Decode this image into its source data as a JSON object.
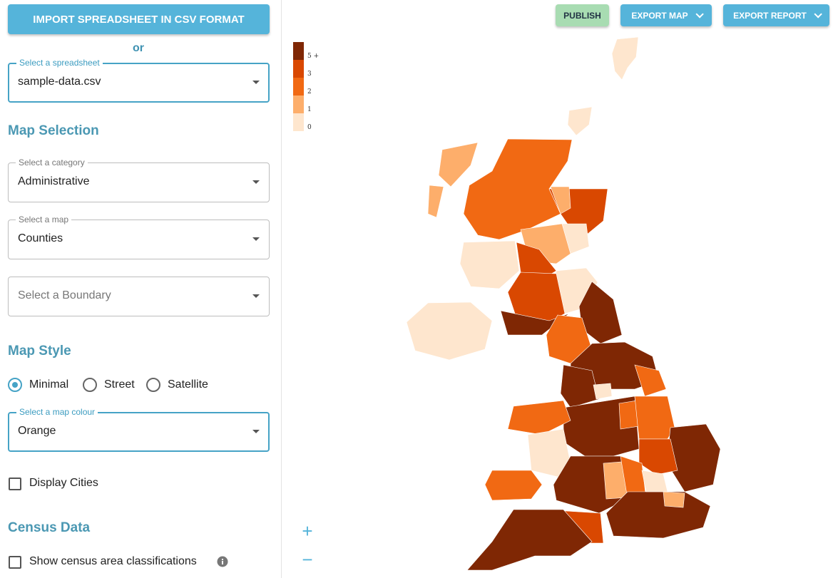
{
  "buttons": {
    "import": "IMPORT SPREADSHEET IN CSV FORMAT",
    "or": "or",
    "publish": "PUBLISH",
    "export_map": "EXPORT MAP",
    "export_report": "EXPORT REPORT"
  },
  "spreadsheet": {
    "label": "Select a spreadsheet",
    "value": "sample-data.csv"
  },
  "map_selection": {
    "heading": "Map Selection",
    "category": {
      "label": "Select a category",
      "value": "Administrative"
    },
    "map": {
      "label": "Select a map",
      "value": "Counties"
    },
    "boundary": {
      "placeholder": "Select a Boundary"
    }
  },
  "map_style": {
    "heading": "Map Style",
    "options": [
      "Minimal",
      "Street",
      "Satellite"
    ],
    "selected": "Minimal",
    "colour": {
      "label": "Select a map colour",
      "value": "Orange"
    },
    "display_cities": "Display Cities"
  },
  "census": {
    "heading": "Census Data",
    "show": "Show census area classifications"
  },
  "legend": [
    {
      "label": "5 +",
      "color": "#7f2704"
    },
    {
      "label": "3",
      "color": "#d94801"
    },
    {
      "label": "2",
      "color": "#f16913"
    },
    {
      "label": "1",
      "color": "#fdae6b"
    },
    {
      "label": "0",
      "color": "#fee6ce"
    }
  ],
  "zoom": {
    "in": "+",
    "out": "−"
  }
}
